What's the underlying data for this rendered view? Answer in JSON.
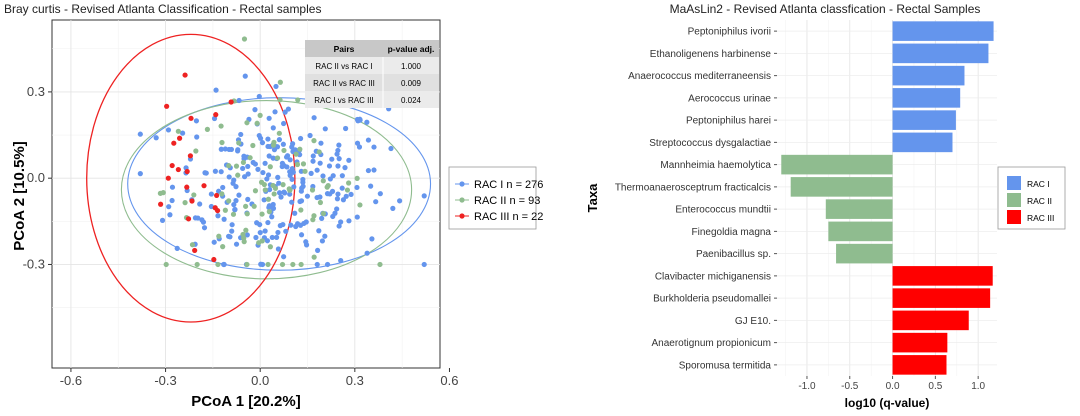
{
  "chart_data": [
    {
      "type": "scatter",
      "title": "Bray curtis - Revised Atlanta Classification  - Rectal samples",
      "xlabel": "PCoA 1 [20.2%]",
      "ylabel": "PCoA 2 [10.5%]",
      "xlim": [
        -0.66,
        0.57
      ],
      "ylim": [
        -0.66,
        0.55
      ],
      "xticks": [
        -0.6,
        -0.3,
        0.0,
        0.3,
        0.6
      ],
      "xtick_labels": [
        "-0.6",
        "-0.3",
        "0.0",
        "0.3",
        "0.6"
      ],
      "yticks": [
        0.3,
        0.0,
        -0.3
      ],
      "ytick_labels": [
        "0.3",
        "0.0",
        "-0.3"
      ],
      "grid": true,
      "legend_position": "right",
      "series": [
        {
          "name": "RAC I n = 276",
          "color": "#6495ED",
          "n": 276,
          "ellipse": {
            "cx": 0.06,
            "cy": -0.02,
            "rx": 0.48,
            "ry": 0.3
          }
        },
        {
          "name": "RAC II n = 93",
          "color": "#8FBC8F",
          "n": 93,
          "ellipse": {
            "cx": 0.02,
            "cy": -0.04,
            "rx": 0.46,
            "ry": 0.31
          }
        },
        {
          "name": "RAC III n = 22",
          "color": "#EE2222",
          "n": 22,
          "ellipse": {
            "cx": -0.22,
            "cy": 0.0,
            "rx": 0.33,
            "ry": 0.5
          }
        }
      ],
      "pvalue_table": {
        "headers": [
          "Pairs",
          "p-value adj."
        ],
        "rows": [
          [
            "RAC II vs RAC I",
            "1.000"
          ],
          [
            "RAC II vs RAC III",
            "0.009"
          ],
          [
            "RAC I vs RAC III",
            "0.024"
          ]
        ]
      }
    },
    {
      "type": "bar",
      "orientation": "horizontal",
      "title": "MaAsLin2 - Revised Atlanta classfication - Rectal Samples",
      "xlabel": "log10 (q-value)",
      "ylabel": "Taxa",
      "xlim": [
        -1.35,
        1.22
      ],
      "xticks": [
        -1.0,
        -0.5,
        0.0,
        0.5,
        1.0
      ],
      "xtick_labels": [
        "-1.0",
        "-0.5",
        "0.0",
        "0.5",
        "1.0"
      ],
      "grid": true,
      "legend_position": "right",
      "legend": [
        {
          "name": "RAC I",
          "color": "#6495ED"
        },
        {
          "name": "RAC II",
          "color": "#8FBC8F"
        },
        {
          "name": "RAC III",
          "color": "#FF0000"
        }
      ],
      "categories": [
        "Peptoniphilus ivorii",
        "Ethanoligenens harbinense",
        "Anaerococcus mediterraneensis",
        "Aerococcus urinae",
        "Peptoniphilus harei",
        "Streptococcus dysgalactiae",
        "Mannheimia haemolytica",
        "Thermoanaerosceptrum fracticalcis",
        "Enterococcus mundtii",
        "Finegoldia magna",
        "Paenibacillus sp.",
        "Clavibacter michiganensis",
        "Burkholderia pseudomallei",
        "GJ E10.",
        "Anaerotignum propionicum",
        "Sporomusa termitida"
      ],
      "values": [
        1.18,
        1.12,
        0.84,
        0.79,
        0.74,
        0.7,
        -1.3,
        -1.19,
        -0.78,
        -0.75,
        -0.66,
        1.17,
        1.14,
        0.89,
        0.64,
        0.63
      ],
      "groups": [
        "RAC I",
        "RAC I",
        "RAC I",
        "RAC I",
        "RAC I",
        "RAC I",
        "RAC II",
        "RAC II",
        "RAC II",
        "RAC II",
        "RAC II",
        "RAC III",
        "RAC III",
        "RAC III",
        "RAC III",
        "RAC III"
      ]
    }
  ]
}
